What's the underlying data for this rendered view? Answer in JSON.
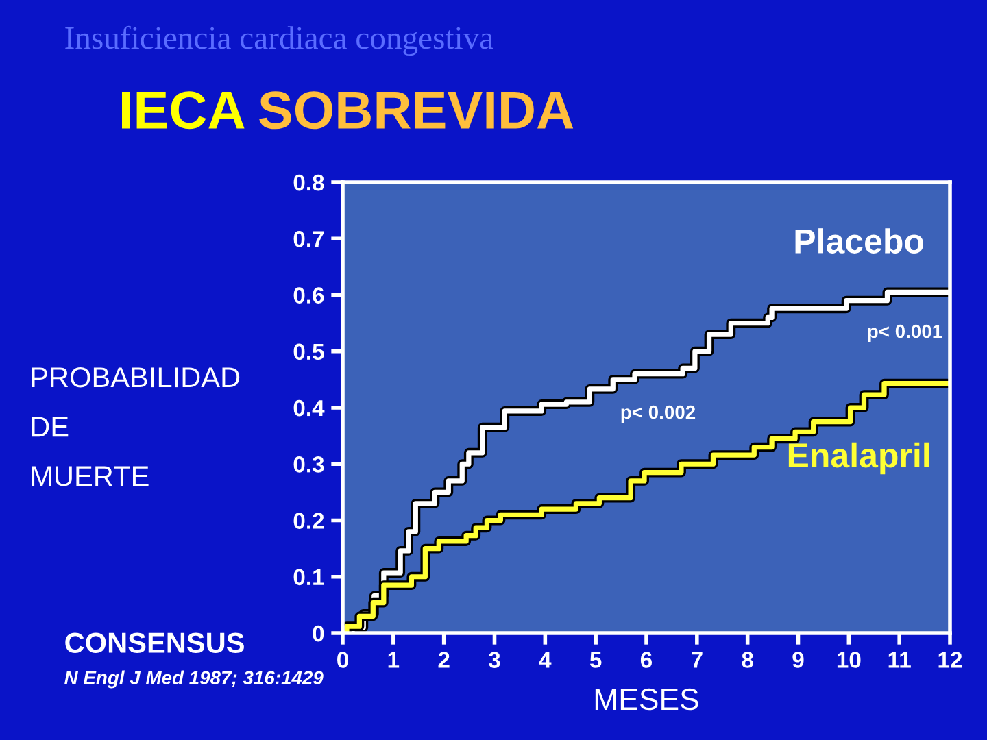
{
  "chart_data": {
    "type": "step",
    "title": "IECA SOBREVIDA",
    "subtitle": "Insuficiencia cardiaca congestiva",
    "xlabel": "MESES",
    "ylabel": "PROBABILIDAD\nDE\nMUERTE",
    "series": [
      {
        "name": "Placebo",
        "color": "#ffffff",
        "x": [
          0,
          0.19,
          0.41,
          0.62,
          0.81,
          1.14,
          1.3,
          1.44,
          1.82,
          2.09,
          2.36,
          2.49,
          2.76,
          3.2,
          3.93,
          4.42,
          4.88,
          5.34,
          5.77,
          6.72,
          6.96,
          7.24,
          7.67,
          8.4,
          8.48,
          9.95,
          10.76,
          12
        ],
        "values": [
          0,
          0.01,
          0.034,
          0.066,
          0.107,
          0.146,
          0.18,
          0.23,
          0.25,
          0.27,
          0.3,
          0.32,
          0.365,
          0.394,
          0.406,
          0.41,
          0.433,
          0.45,
          0.46,
          0.47,
          0.5,
          0.53,
          0.55,
          0.56,
          0.576,
          0.59,
          0.605,
          0.605
        ]
      },
      {
        "name": "Enalapril",
        "color": "#ffff33",
        "x": [
          0,
          0.08,
          0.33,
          0.6,
          0.81,
          1.36,
          1.63,
          1.9,
          2.44,
          2.63,
          2.85,
          3.12,
          3.93,
          4.61,
          5.07,
          5.69,
          5.96,
          6.69,
          7.32,
          8.13,
          8.48,
          8.94,
          9.3,
          10.03,
          10.3,
          10.7,
          12
        ],
        "values": [
          0,
          0.012,
          0.03,
          0.054,
          0.085,
          0.1,
          0.15,
          0.163,
          0.173,
          0.187,
          0.2,
          0.21,
          0.22,
          0.23,
          0.24,
          0.27,
          0.285,
          0.3,
          0.316,
          0.33,
          0.345,
          0.357,
          0.375,
          0.4,
          0.423,
          0.443,
          0.443
        ]
      }
    ],
    "xlim": [
      0,
      12
    ],
    "xticks": [
      0,
      1,
      2,
      3,
      4,
      5,
      6,
      7,
      8,
      9,
      10,
      11,
      12
    ],
    "ylim": [
      0,
      0.8
    ],
    "yticks": [
      0,
      0.1,
      0.2,
      0.3,
      0.4,
      0.5,
      0.6,
      0.7,
      0.8
    ],
    "grid": false,
    "legend": false,
    "marker": "none",
    "line_style": "solid",
    "annotations": [
      "p< 0.002",
      "p< 0.001",
      "CONSENSUS",
      "N Engl J Med 1987; 316:1429"
    ]
  }
}
